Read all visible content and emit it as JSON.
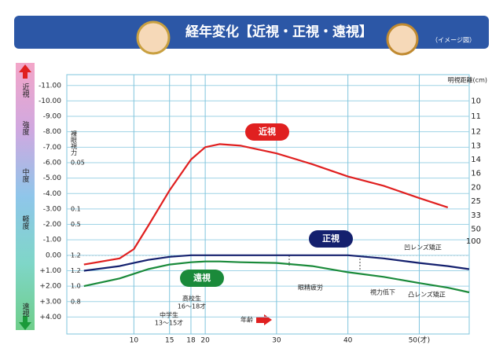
{
  "chart_data": {
    "type": "line",
    "title": "経年変化【近視・正視・遠視】",
    "subtitle": "（イメージ図）",
    "x": [
      3,
      8,
      10,
      12,
      15,
      18,
      20,
      22,
      25,
      30,
      35,
      40,
      45,
      50,
      54,
      57
    ],
    "xlim": [
      0.6,
      57
    ],
    "xticks": [
      10,
      15,
      18,
      20,
      30,
      40,
      {
        "value": 50,
        "label": "50(才)"
      }
    ],
    "ylim": [
      5.1,
      -11.7
    ],
    "yticks": [
      {
        "value": -11,
        "label": "-11.00"
      },
      {
        "value": -10,
        "label": "-10.00"
      },
      {
        "value": -9,
        "label": "-9.00"
      },
      {
        "value": -8,
        "label": "-8.00"
      },
      {
        "value": -7,
        "label": "-7.00"
      },
      {
        "value": -6,
        "label": "-6.00"
      },
      {
        "value": -5,
        "label": "-5.00"
      },
      {
        "value": -4,
        "label": "-4.00"
      },
      {
        "value": -3,
        "label": "-3.00"
      },
      {
        "value": -2,
        "label": "-2.00"
      },
      {
        "value": -1,
        "label": "-1.00"
      },
      {
        "value": 0,
        "label": "0.00"
      },
      {
        "value": 1,
        "label": "+1.00"
      },
      {
        "value": 2,
        "label": "+2.00"
      },
      {
        "value": 3,
        "label": "+3.00"
      },
      {
        "value": 4,
        "label": "+4.00"
      }
    ],
    "grid": true,
    "series": [
      {
        "name": "近視",
        "color": "#e02020",
        "values": [
          0.6,
          0.2,
          -0.4,
          -1.9,
          -4.2,
          -6.2,
          -7.0,
          -7.2,
          -7.1,
          -6.6,
          -5.9,
          -5.1,
          -4.5,
          -3.7,
          -3.1,
          null
        ]
      },
      {
        "name": "正視",
        "color": "#14206e",
        "values": [
          1.0,
          0.7,
          0.5,
          0.3,
          0.1,
          0.0,
          0.0,
          0.0,
          0.0,
          0.0,
          0.0,
          0.0,
          0.2,
          0.5,
          0.7,
          0.9
        ]
      },
      {
        "name": "遠視",
        "color": "#1a8a3a",
        "values": [
          2.0,
          1.5,
          1.2,
          0.9,
          0.6,
          0.45,
          0.4,
          0.4,
          0.45,
          0.5,
          0.7,
          1.1,
          1.4,
          1.8,
          2.1,
          2.4
        ]
      }
    ],
    "acuity_title": "裸眼視力",
    "acuity_ticks": [
      {
        "value": -6,
        "label": "0.05"
      },
      {
        "value": -3,
        "label": "0.1"
      },
      {
        "value": -2,
        "label": "0.5"
      },
      {
        "value": 0,
        "label": "1.2"
      },
      {
        "value": 1,
        "label": "1.2"
      },
      {
        "value": 2,
        "label": "1.0"
      },
      {
        "value": 3,
        "label": "0.8"
      }
    ],
    "distance_title": "明視距離(cm)",
    "distance_ticks": [
      {
        "value": -10,
        "label": "10"
      },
      {
        "value": -9,
        "label": "11"
      },
      {
        "value": -8,
        "label": "12"
      },
      {
        "value": -7.1,
        "label": "13"
      },
      {
        "value": -6.2,
        "label": "14"
      },
      {
        "value": -5.3,
        "label": "16"
      },
      {
        "value": -4.4,
        "label": "20"
      },
      {
        "value": -3.5,
        "label": "25"
      },
      {
        "value": -2.6,
        "label": "33"
      },
      {
        "value": -1.7,
        "label": "50"
      },
      {
        "value": -0.9,
        "label": "100"
      }
    ],
    "severity_labels": [
      "近視",
      "強度",
      "中度",
      "軽度",
      "遠視"
    ],
    "annotations": [
      "中学生",
      "13〜15才",
      "高校生",
      "16〜18才",
      "年齢",
      "眼精疲労",
      "視力低下",
      "凹レンズ矯正",
      "凸レンズ矯正"
    ]
  }
}
